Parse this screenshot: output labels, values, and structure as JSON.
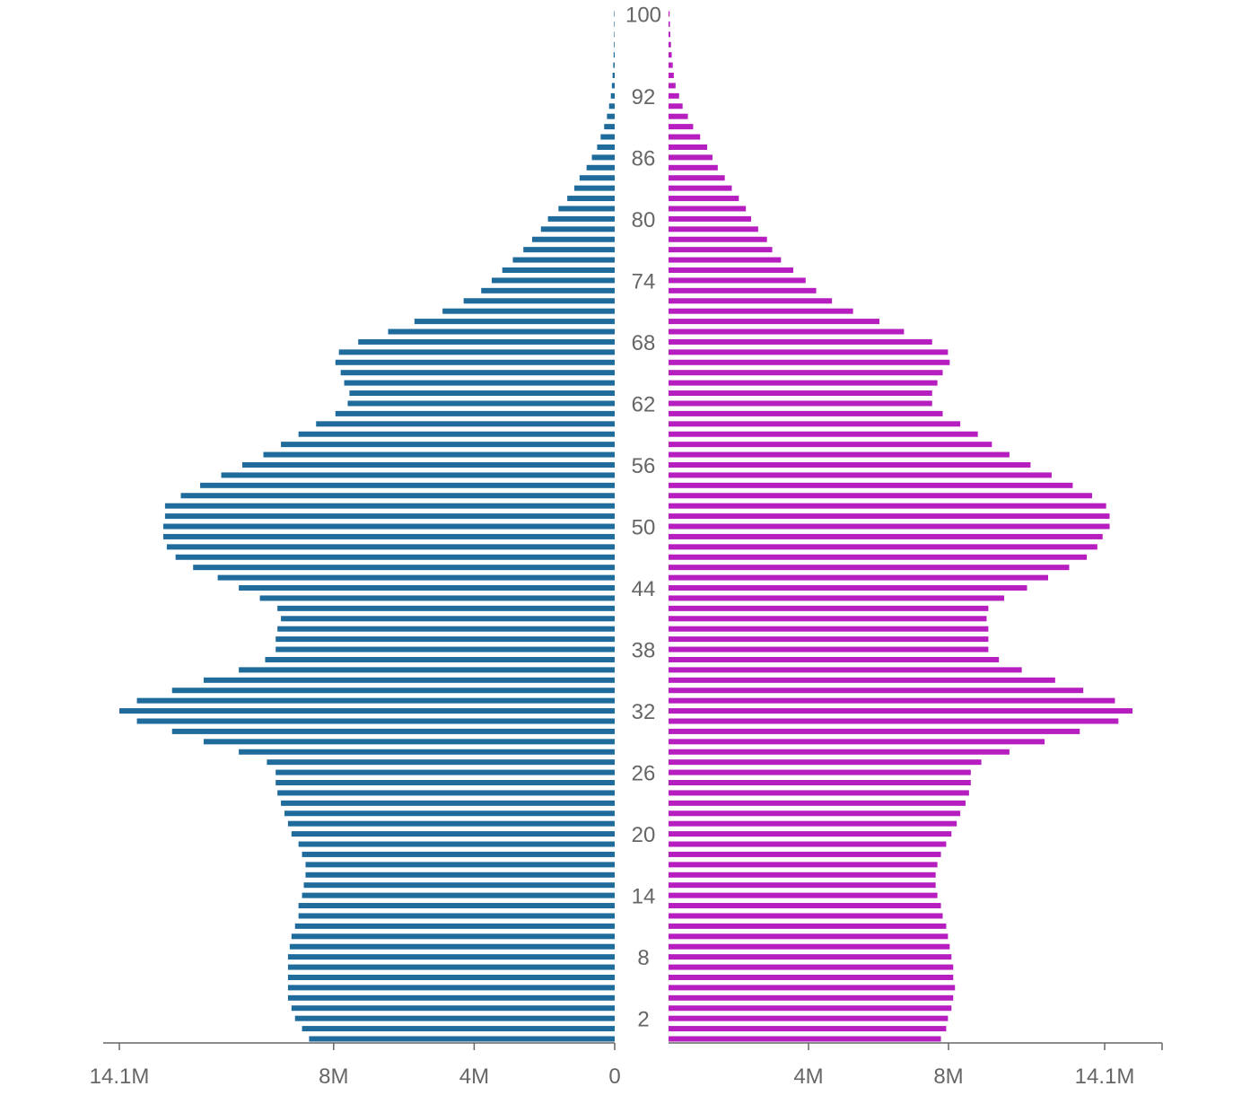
{
  "chart_data": {
    "type": "bar",
    "orientation": "horizontal-population-pyramid",
    "categories": [
      "0",
      "1",
      "2",
      "3",
      "4",
      "5",
      "6",
      "7",
      "8",
      "9",
      "10",
      "11",
      "12",
      "13",
      "14",
      "15",
      "16",
      "17",
      "18",
      "19",
      "20",
      "21",
      "22",
      "23",
      "24",
      "25",
      "26",
      "27",
      "28",
      "29",
      "30",
      "31",
      "32",
      "33",
      "34",
      "35",
      "36",
      "37",
      "38",
      "39",
      "40",
      "41",
      "42",
      "43",
      "44",
      "45",
      "46",
      "47",
      "48",
      "49",
      "50",
      "51",
      "52",
      "53",
      "54",
      "55",
      "56",
      "57",
      "58",
      "59",
      "60",
      "61",
      "62",
      "63",
      "64",
      "65",
      "66",
      "67",
      "68",
      "69",
      "70",
      "71",
      "72",
      "73",
      "74",
      "75",
      "76",
      "77",
      "78",
      "79",
      "80",
      "81",
      "82",
      "83",
      "84",
      "85",
      "86",
      "87",
      "88",
      "89",
      "90",
      "91",
      "92",
      "93",
      "94",
      "95",
      "96",
      "97",
      "98",
      "99",
      "100"
    ],
    "age_labels": [
      "2",
      "8",
      "14",
      "20",
      "26",
      "32",
      "38",
      "44",
      "50",
      "56",
      "62",
      "68",
      "74",
      "80",
      "86",
      "92",
      "100"
    ],
    "series": [
      {
        "side": "left",
        "color": "#1f6b9c",
        "values": [
          8.7,
          8.9,
          9.1,
          9.2,
          9.3,
          9.3,
          9.3,
          9.3,
          9.3,
          9.25,
          9.2,
          9.1,
          9.0,
          9.0,
          8.9,
          8.85,
          8.8,
          8.8,
          8.9,
          9.0,
          9.2,
          9.3,
          9.4,
          9.5,
          9.6,
          9.65,
          9.65,
          9.9,
          10.7,
          11.7,
          12.6,
          13.6,
          14.1,
          13.6,
          12.6,
          11.7,
          10.7,
          9.95,
          9.65,
          9.65,
          9.6,
          9.5,
          9.6,
          10.1,
          10.7,
          11.3,
          12.0,
          12.5,
          12.75,
          12.85,
          12.85,
          12.8,
          12.8,
          12.35,
          11.8,
          11.2,
          10.6,
          10.0,
          9.5,
          9.0,
          8.5,
          7.95,
          7.6,
          7.55,
          7.7,
          7.8,
          7.95,
          7.85,
          7.3,
          6.45,
          5.7,
          4.9,
          4.3,
          3.8,
          3.5,
          3.2,
          2.9,
          2.6,
          2.35,
          2.1,
          1.9,
          1.6,
          1.35,
          1.15,
          1.0,
          0.8,
          0.65,
          0.5,
          0.4,
          0.3,
          0.22,
          0.16,
          0.11,
          0.08,
          0.06,
          0.04,
          0.03,
          0.02,
          0.01,
          0.007,
          0.004
        ]
      },
      {
        "side": "right",
        "color": "#b61ebf",
        "values": [
          7.75,
          7.9,
          7.95,
          8.05,
          8.1,
          8.15,
          8.1,
          8.1,
          8.05,
          8.0,
          7.95,
          7.9,
          7.8,
          7.75,
          7.65,
          7.6,
          7.6,
          7.65,
          7.75,
          7.9,
          8.05,
          8.2,
          8.3,
          8.45,
          8.55,
          8.6,
          8.6,
          8.9,
          9.7,
          10.7,
          11.7,
          12.8,
          13.2,
          12.7,
          11.8,
          11.0,
          10.05,
          9.4,
          9.1,
          9.1,
          9.1,
          9.05,
          9.1,
          9.55,
          10.2,
          10.8,
          11.4,
          11.9,
          12.2,
          12.35,
          12.55,
          12.55,
          12.45,
          12.05,
          11.5,
          10.9,
          10.3,
          9.7,
          9.2,
          8.8,
          8.3,
          7.8,
          7.5,
          7.5,
          7.65,
          7.8,
          8.0,
          7.95,
          7.5,
          6.7,
          6.0,
          5.25,
          4.65,
          4.2,
          3.9,
          3.55,
          3.2,
          2.95,
          2.8,
          2.55,
          2.35,
          2.2,
          2.0,
          1.8,
          1.6,
          1.4,
          1.25,
          1.1,
          0.9,
          0.7,
          0.55,
          0.4,
          0.3,
          0.2,
          0.15,
          0.12,
          0.09,
          0.07,
          0.05,
          0.04,
          0.03
        ]
      }
    ],
    "x_ticks_left": [
      "14.1M",
      "8M",
      "4M",
      "0"
    ],
    "x_ticks_right": [
      "4M",
      "8M",
      "14.1M"
    ],
    "x_tick_values_left": [
      14.1,
      8,
      4,
      0
    ],
    "x_tick_values_right": [
      4,
      8,
      14.1
    ],
    "xlim": [
      0,
      14.1
    ],
    "grid": false,
    "legend": "none"
  }
}
